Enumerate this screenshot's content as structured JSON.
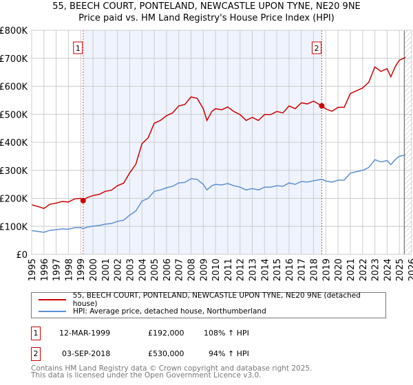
{
  "chart_data": {
    "type": "line",
    "title": "55, BEECH COURT, PONTELAND, NEWCASTLE UPON TYNE, NE20 9NE",
    "subtitle": "Price paid vs. HM Land Registry's House Price Index (HPI)",
    "xlim": [
      1995,
      2026
    ],
    "ylim": [
      0,
      800000
    ],
    "y_ticks": [
      0,
      100000,
      200000,
      300000,
      400000,
      500000,
      600000,
      700000,
      800000
    ],
    "y_tick_labels": [
      "£0",
      "£100K",
      "£200K",
      "£300K",
      "£400K",
      "£500K",
      "£600K",
      "£700K",
      "£800K"
    ],
    "x_tick_labels": [
      "1995",
      "1996",
      "1997",
      "1998",
      "1999",
      "2000",
      "2001",
      "2002",
      "2003",
      "2004",
      "2005",
      "2006",
      "2007",
      "2008",
      "2009",
      "2010",
      "2011",
      "2012",
      "2013",
      "2014",
      "2015",
      "2016",
      "2017",
      "2018",
      "2019",
      "2020",
      "2021",
      "2022",
      "2023",
      "2024",
      "2025",
      "2026"
    ],
    "grid": true,
    "shaded_range": [
      1999.2,
      2018.67
    ],
    "forecast_hatch_from": 2025.4,
    "x": [
      1995,
      1995.5,
      1996,
      1996.5,
      1997,
      1997.5,
      1998,
      1998.5,
      1999,
      1999.2,
      1999.5,
      2000,
      2000.5,
      2001,
      2001.5,
      2002,
      2002.5,
      2003,
      2003.5,
      2004,
      2004.5,
      2005,
      2005.5,
      2006,
      2006.5,
      2007,
      2007.5,
      2008,
      2008.5,
      2009,
      2009.3,
      2009.7,
      2010,
      2010.5,
      2011,
      2011.5,
      2012,
      2012.5,
      2013,
      2013.5,
      2014,
      2014.5,
      2015,
      2015.5,
      2016,
      2016.5,
      2017,
      2017.5,
      2018,
      2018.67,
      2019,
      2019.5,
      2020,
      2020.5,
      2021,
      2021.5,
      2022,
      2022.5,
      2023,
      2023.5,
      2024,
      2024.3,
      2024.7,
      2025,
      2025.5
    ],
    "series": [
      {
        "name": "55, BEECH COURT, PONTELAND, NEWCASTLE UPON TYNE, NE20 9NE (detached house)",
        "color": "#cc0000",
        "values": [
          177000,
          171000,
          164000,
          179000,
          183000,
          189000,
          187000,
          198000,
          200000,
          192000,
          202000,
          210000,
          214000,
          225000,
          229000,
          245000,
          254000,
          291000,
          322000,
          395000,
          416000,
          468000,
          478000,
          495000,
          505000,
          530000,
          535000,
          562000,
          557000,
          520000,
          478000,
          510000,
          520000,
          516000,
          526000,
          510000,
          499000,
          478000,
          489000,
          478000,
          499000,
          499000,
          510000,
          505000,
          530000,
          520000,
          541000,
          537000,
          547000,
          530000,
          519000,
          511000,
          525000,
          525000,
          574000,
          584000,
          594000,
          614000,
          669000,
          653000,
          663000,
          634000,
          673000,
          693000,
          703000
        ]
      },
      {
        "name": "HPI: Average price, detached house, Northumberland",
        "color": "#5b8fd4",
        "values": [
          85000,
          82000,
          79000,
          86000,
          88000,
          91000,
          90000,
          95000,
          96000,
          92000,
          97000,
          101000,
          103000,
          108000,
          110000,
          118000,
          122000,
          140000,
          155000,
          190000,
          200000,
          225000,
          230000,
          238000,
          243000,
          255000,
          257000,
          270000,
          268000,
          250000,
          230000,
          245000,
          250000,
          248000,
          253000,
          245000,
          240000,
          230000,
          235000,
          230000,
          240000,
          240000,
          245000,
          243000,
          255000,
          250000,
          260000,
          258000,
          263000,
          268000,
          262000,
          258000,
          265000,
          265000,
          290000,
          295000,
          300000,
          310000,
          338000,
          330000,
          335000,
          320000,
          340000,
          350000,
          355000
        ]
      }
    ],
    "annotations": [
      {
        "label": "1",
        "x": 1999.2,
        "y": 192000
      },
      {
        "label": "2",
        "x": 2018.67,
        "y": 530000
      }
    ]
  },
  "sales": [
    {
      "num": "1",
      "date": "12-MAR-1999",
      "price": "£192,000",
      "hpi": "108% ↑ HPI"
    },
    {
      "num": "2",
      "date": "03-SEP-2018",
      "price": "£530,000",
      "hpi": "94% ↑ HPI"
    }
  ],
  "footer": {
    "line1": "Contains HM Land Registry data © Crown copyright and database right 2025.",
    "line2": "This data is licensed under the Open Government Licence v3.0."
  }
}
